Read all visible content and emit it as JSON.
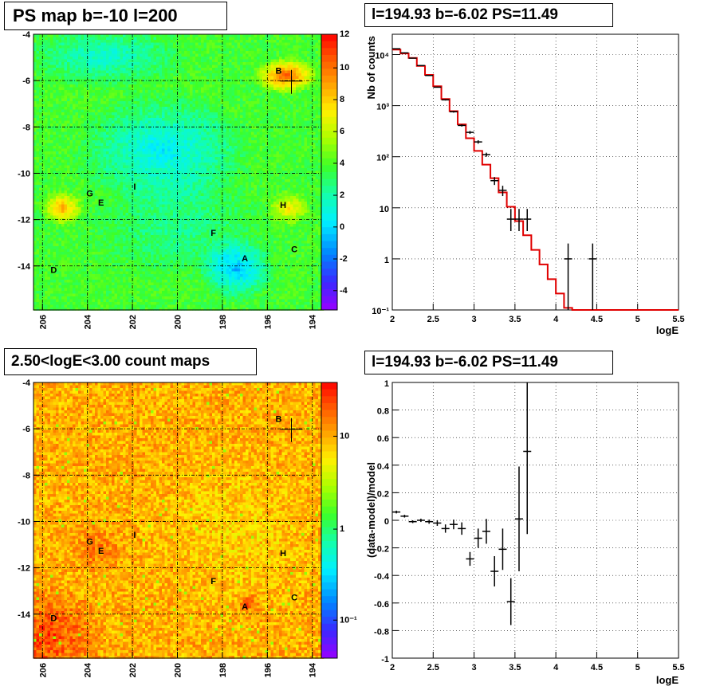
{
  "panels": {
    "map1": {
      "title": "PS map b=-10 l=200"
    },
    "spec": {
      "title": "l=194.93 b=-6.02 PS=11.49"
    },
    "map2": {
      "title": "2.50<logE<3.00 count maps"
    },
    "resid": {
      "title": "l=194.93 b=-6.02 PS=11.49"
    }
  },
  "colors": {
    "model_line": "#e00000",
    "data": "#000000",
    "grid": "#000000"
  },
  "chart_data": [
    {
      "type": "heatmap",
      "title": "PS map b=-10 l=200",
      "xlim": [
        206.4,
        193.6
      ],
      "ylim": [
        -15.9,
        -4
      ],
      "x_ticks": [
        "206",
        "204",
        "202",
        "200",
        "198",
        "196",
        "194"
      ],
      "y_ticks": [
        "-4",
        "-6",
        "-8",
        "-10",
        "-12",
        "-14"
      ],
      "colorbar_ticks": [
        "12",
        "10",
        "8",
        "6",
        "4",
        "2",
        "0",
        "-2",
        "-4"
      ],
      "colorbar_range": [
        -5,
        12
      ],
      "sources": [
        {
          "name": "B",
          "l": 195.5,
          "b": -5.7
        },
        {
          "name": "G",
          "l": 203.9,
          "b": -11.0
        },
        {
          "name": "E",
          "l": 203.4,
          "b": -11.4
        },
        {
          "name": "I",
          "l": 201.9,
          "b": -10.7
        },
        {
          "name": "H",
          "l": 195.3,
          "b": -11.5
        },
        {
          "name": "F",
          "l": 198.4,
          "b": -12.7
        },
        {
          "name": "A",
          "l": 197.0,
          "b": -13.8
        },
        {
          "name": "C",
          "l": 194.8,
          "b": -13.4
        },
        {
          "name": "D",
          "l": 205.5,
          "b": -14.3
        }
      ],
      "marker": {
        "l": 194.93,
        "b": -6.02
      }
    },
    {
      "type": "line",
      "title": "l=194.93 b=-6.02 PS=11.49",
      "xlabel": "logE",
      "ylabel": "Nb of counts",
      "xlim": [
        2,
        5.5
      ],
      "ylim": [
        0.1,
        25000
      ],
      "yscale": "log",
      "x_ticks": [
        "2",
        "2.5",
        "3",
        "3.5",
        "4",
        "4.5",
        "5",
        "5.5"
      ],
      "y_ticks": [
        "10⁻¹",
        "1",
        "10",
        "10²",
        "10³",
        "10⁴"
      ],
      "grid": true,
      "series": [
        {
          "kind": "step",
          "bin_edges": [
            2.0,
            2.1,
            2.2,
            2.3,
            2.4,
            2.5,
            2.6,
            2.7,
            2.8,
            2.9,
            3.0,
            3.1,
            3.2,
            3.3,
            3.4,
            3.5,
            3.6,
            3.7,
            3.8,
            3.9,
            4.0,
            4.1,
            4.2,
            4.3,
            4.4,
            4.5,
            4.6,
            4.7,
            4.8,
            4.9,
            5.0,
            5.1,
            5.2,
            5.3,
            5.4,
            5.5
          ],
          "values": [
            12500,
            10500,
            8600,
            6000,
            4000,
            2400,
            1350,
            780,
            430,
            230,
            130,
            70,
            38,
            20,
            10.5,
            5.5,
            2.9,
            1.5,
            0.78,
            0.4,
            0.21,
            0.11,
            0.1,
            0.1,
            0.1,
            0.1,
            0.1,
            0.1,
            0.1,
            0.1,
            0.1,
            0.1,
            0.1,
            0.1,
            0.1
          ]
        },
        {
          "kind": "points",
          "x": [
            2.05,
            2.15,
            2.25,
            2.35,
            2.45,
            2.55,
            2.65,
            2.75,
            2.85,
            2.95,
            3.05,
            3.15,
            3.25,
            3.35,
            3.45,
            3.55,
            3.65,
            4.15,
            4.45
          ],
          "y": [
            13000,
            10800,
            8500,
            6100,
            3900,
            2300,
            1300,
            760,
            410,
            300,
            195,
            110,
            34,
            22,
            6,
            6,
            6,
            1,
            1
          ],
          "y_low": [
            12800,
            10600,
            8400,
            6000,
            3830,
            2250,
            1260,
            730,
            390,
            280,
            180,
            100,
            28,
            17,
            3.5,
            3.5,
            3.5,
            0.1,
            0.1
          ],
          "y_high": [
            13200,
            11000,
            8600,
            6200,
            3970,
            2350,
            1340,
            790,
            430,
            320,
            210,
            120,
            40,
            27,
            9.5,
            9.5,
            9.5,
            2,
            2
          ]
        }
      ]
    },
    {
      "type": "heatmap",
      "title": "2.50<logE<3.00 count maps",
      "xlim": [
        206.4,
        193.6
      ],
      "ylim": [
        -15.9,
        -4
      ],
      "x_ticks": [
        "206",
        "204",
        "202",
        "200",
        "198",
        "196",
        "194"
      ],
      "y_ticks": [
        "-4",
        "-6",
        "-8",
        "-10",
        "-12",
        "-14"
      ],
      "colorbar_ticks": [
        "10",
        "1",
        "10⁻¹"
      ],
      "colorbar_scale": "log",
      "sources": [
        {
          "name": "B",
          "l": 195.5,
          "b": -5.7
        },
        {
          "name": "G",
          "l": 203.9,
          "b": -11.0
        },
        {
          "name": "E",
          "l": 203.4,
          "b": -11.4
        },
        {
          "name": "I",
          "l": 201.9,
          "b": -10.7
        },
        {
          "name": "H",
          "l": 195.3,
          "b": -11.5
        },
        {
          "name": "F",
          "l": 198.4,
          "b": -12.7
        },
        {
          "name": "A",
          "l": 197.0,
          "b": -13.8
        },
        {
          "name": "C",
          "l": 194.8,
          "b": -13.4
        },
        {
          "name": "D",
          "l": 205.5,
          "b": -14.3
        }
      ],
      "marker": {
        "l": 194.93,
        "b": -6.02
      }
    },
    {
      "type": "scatter",
      "title": "l=194.93 b=-6.02 PS=11.49",
      "xlabel": "logE",
      "ylabel": "(data-model)/model",
      "xlim": [
        2,
        5.5
      ],
      "ylim": [
        -1,
        1
      ],
      "x_ticks": [
        "2",
        "2.5",
        "3",
        "3.5",
        "4",
        "4.5",
        "5",
        "5.5"
      ],
      "y_ticks": [
        "1",
        "0.8",
        "0.6",
        "0.4",
        "0.2",
        "0",
        "-0.2",
        "-0.4",
        "-0.6",
        "-0.8",
        "-1"
      ],
      "grid": true,
      "series": [
        {
          "x": [
            2.05,
            2.15,
            2.25,
            2.35,
            2.45,
            2.55,
            2.65,
            2.75,
            2.85,
            2.95,
            3.05,
            3.15,
            3.25,
            3.35,
            3.45,
            3.55,
            3.65
          ],
          "y": [
            0.06,
            0.03,
            -0.01,
            0.0,
            -0.01,
            -0.02,
            -0.06,
            -0.03,
            -0.06,
            -0.28,
            -0.13,
            -0.08,
            -0.37,
            -0.21,
            -0.59,
            0.01,
            0.5
          ],
          "err": [
            0.01,
            0.01,
            0.01,
            0.012,
            0.015,
            0.02,
            0.03,
            0.035,
            0.045,
            0.05,
            0.07,
            0.09,
            0.11,
            0.15,
            0.17,
            0.38,
            0.6
          ]
        }
      ]
    }
  ]
}
